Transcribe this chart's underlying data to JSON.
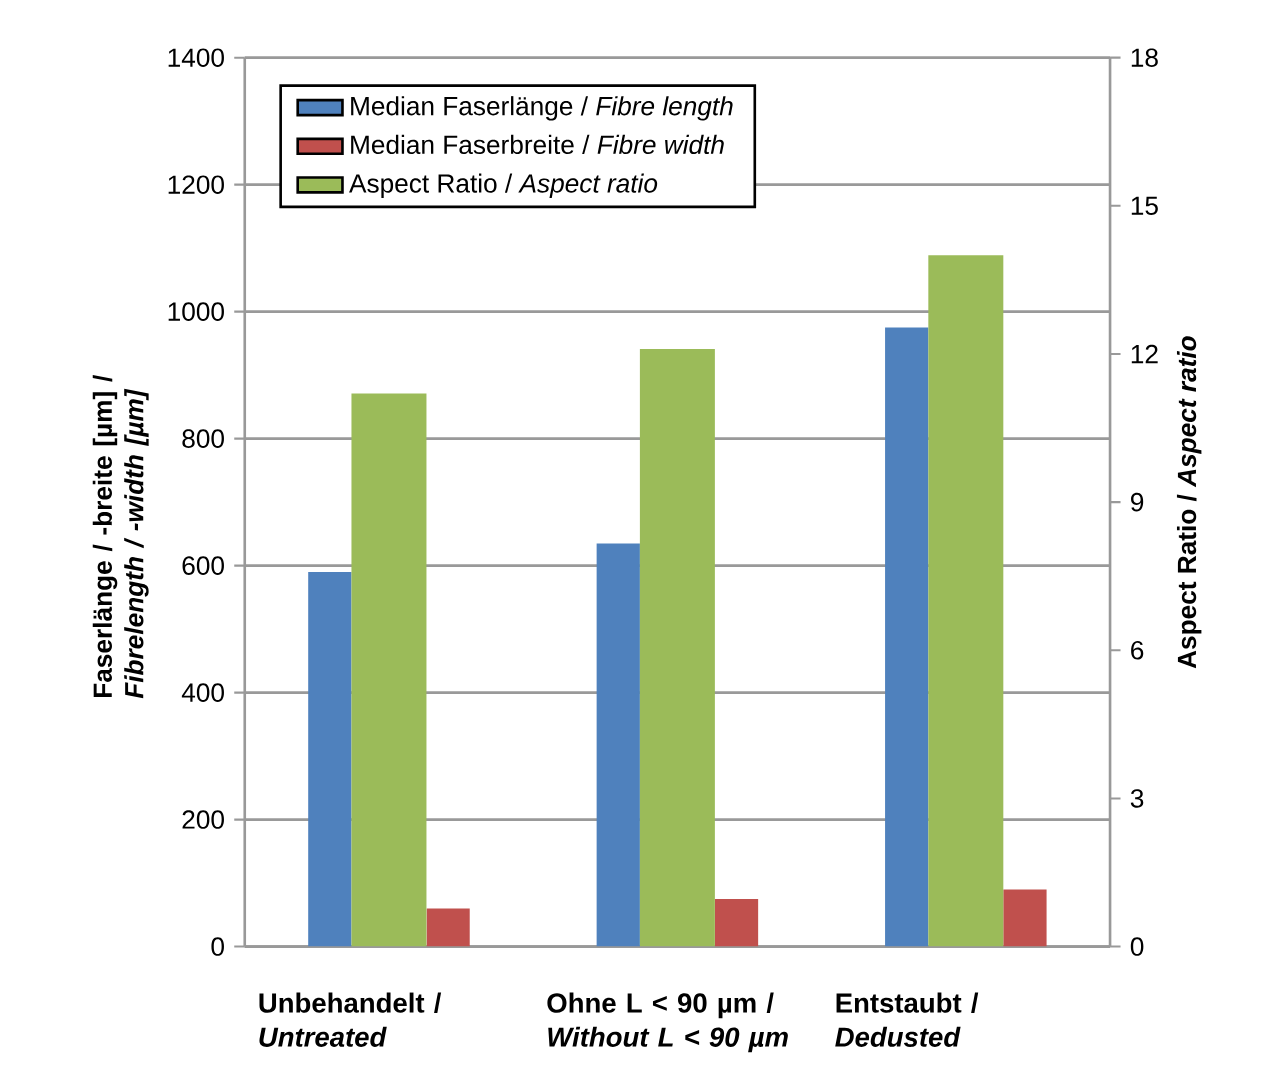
{
  "chart_data": {
    "type": "bar",
    "categories": [
      "Unbehandelt / *Untreated*",
      "Ohne L < 90 µm / *Without L < 90 µm*",
      "Entstaubt / *Dedusted*"
    ],
    "series": [
      {
        "name": "Median Faserlänge / *Fibre length*",
        "color": "#4f81bd",
        "values": [
          590,
          635,
          975
        ]
      },
      {
        "name": "Median Faserbreite / *Fibre width*",
        "color": "#c0504d",
        "values": [
          60,
          75,
          90
        ]
      },
      {
        "name": "Aspect Ratio / *Aspect ratio*",
        "color": "#9bbb59",
        "values": [
          11.2,
          12.1,
          14.0
        ],
        "axis": "y2"
      }
    ],
    "ylabel": "Faserlänge / -breite [µm] / *Fibrelength / -width [µm]*",
    "y2label": "Aspect Ratio  / *Aspect ratio*",
    "ylim": [
      0,
      1400
    ],
    "yticks": [
      0,
      200,
      400,
      600,
      800,
      1000,
      1200,
      1400
    ],
    "y2lim": [
      0,
      18
    ],
    "y2ticks": [
      0,
      3,
      6,
      9,
      12,
      15,
      18
    ],
    "grid": "y",
    "legend": "top left"
  }
}
